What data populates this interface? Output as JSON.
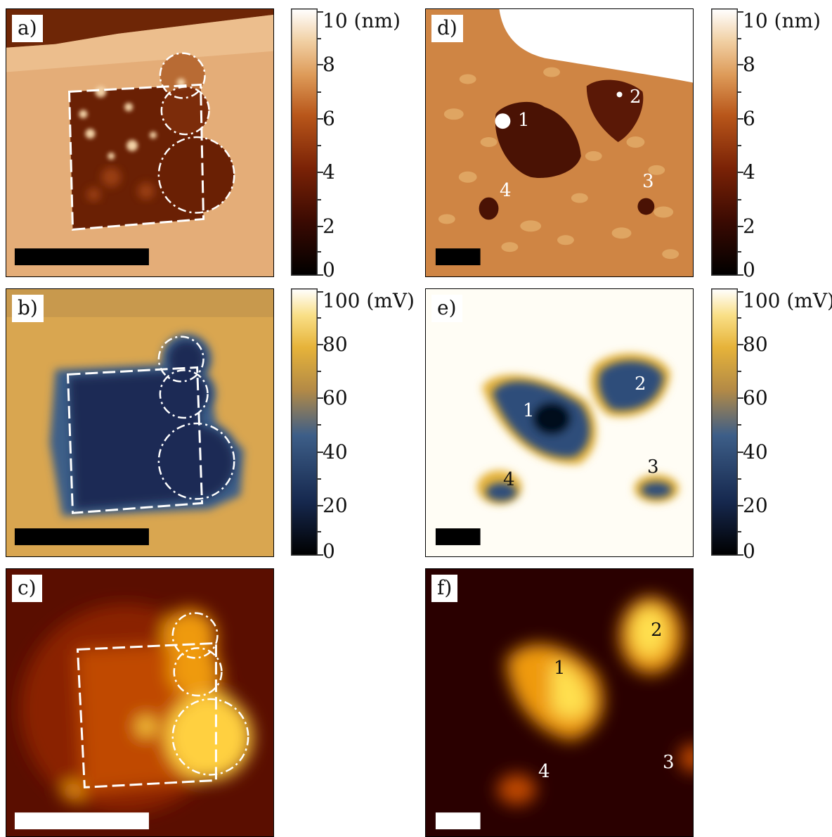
{
  "panels": {
    "a": {
      "label": "a)"
    },
    "b": {
      "label": "b)"
    },
    "c": {
      "label": "c)"
    },
    "d": {
      "label": "d)",
      "regions": [
        "1",
        "2",
        "3",
        "4"
      ]
    },
    "e": {
      "label": "e)",
      "regions": [
        "1",
        "2",
        "3",
        "4"
      ]
    },
    "f": {
      "label": "f)",
      "regions": [
        "1",
        "2",
        "3",
        "4"
      ]
    }
  },
  "colorbars": {
    "height": {
      "ticks": [
        "10 (nm)",
        "8",
        "6",
        "4",
        "2",
        "0"
      ]
    },
    "potential": {
      "ticks": [
        "100 (mV)",
        "80",
        "60",
        "40",
        "20",
        "0"
      ]
    }
  },
  "colors": {
    "height_map": [
      "#000000",
      "#3a0a02",
      "#7a2206",
      "#b8561a",
      "#dd9a58",
      "#f1d0a4",
      "#ffffff"
    ],
    "potential_map": [
      "#000000",
      "#16284e",
      "#3d5e88",
      "#b38a46",
      "#e6b33a",
      "#f9df86",
      "#ffffff"
    ],
    "heat_map": [
      "#2a0000",
      "#6e1200",
      "#c04a00",
      "#ef9a10",
      "#ffe050"
    ]
  }
}
